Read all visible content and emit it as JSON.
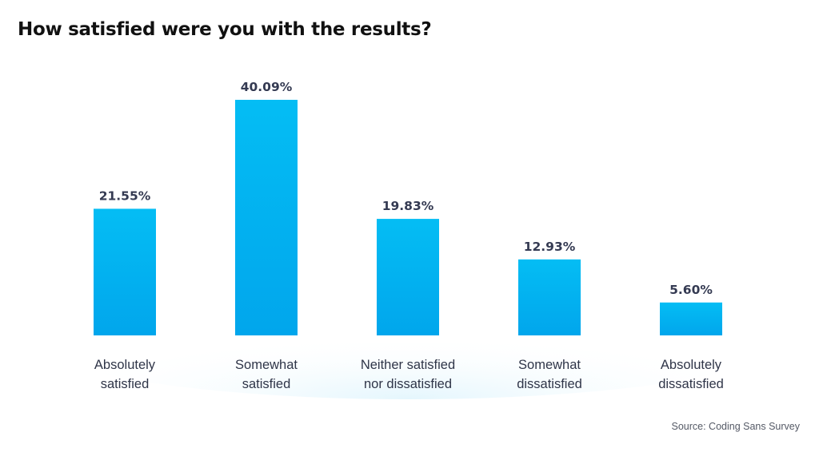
{
  "page": {
    "title": "How satisfied were you with the results?",
    "source": "Source: Coding Sans Survey"
  },
  "colors": {
    "bar_top": "#04bdf4",
    "bar_bottom": "#01a6ec",
    "value_text": "#343a52",
    "label_text": "#2f3548",
    "baseline_glow": "#e4f6fd"
  },
  "chart_data": {
    "type": "bar",
    "title": "How satisfied were you with the results?",
    "xlabel": "",
    "ylabel": "",
    "categories": [
      [
        "Absolutely",
        "satisfied"
      ],
      [
        "Somewhat",
        "satisfied"
      ],
      [
        "Neither satisfied",
        "nor dissatisfied"
      ],
      [
        "Somewhat",
        "dissatisfied"
      ],
      [
        "Absolutely",
        "dissatisfied"
      ]
    ],
    "values": [
      21.55,
      40.09,
      19.83,
      12.93,
      5.6
    ],
    "value_labels": [
      "21.55%",
      "40.09%",
      "19.83%",
      "12.93%",
      "5.60%"
    ],
    "unit": "%",
    "ylim": [
      0,
      40.09
    ],
    "grid": false,
    "legend": "none"
  }
}
